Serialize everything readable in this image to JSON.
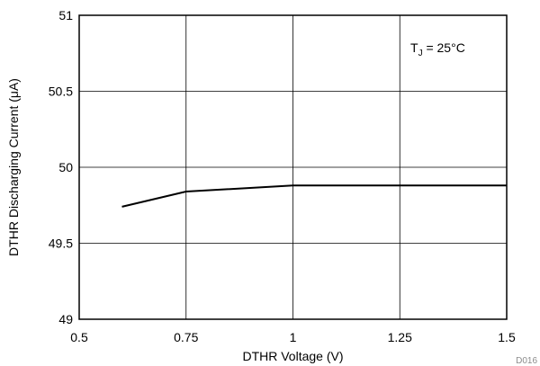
{
  "chart_data": {
    "type": "line",
    "xlabel": "DTHR Voltage (V)",
    "ylabel": "DTHR Discharging Current (μA)",
    "xlim": [
      0.5,
      1.5
    ],
    "ylim": [
      49,
      51
    ],
    "x_ticks": [
      0.5,
      0.75,
      1,
      1.25,
      1.5
    ],
    "x_tick_labels": [
      "0.5",
      "0.75",
      "1",
      "1.25",
      "1.5"
    ],
    "y_ticks": [
      49,
      49.5,
      50,
      50.5,
      51
    ],
    "y_tick_labels": [
      "49",
      "49.5",
      "50",
      "50.5",
      "51"
    ],
    "grid": true,
    "series": [
      {
        "color": "#000000",
        "x": [
          0.6,
          0.75,
          1.0,
          1.25,
          1.5
        ],
        "y": [
          49.74,
          49.84,
          49.88,
          49.88,
          49.88
        ]
      }
    ],
    "annotations": [
      {
        "base": "T",
        "sub": "J",
        "rest": " = 25°C"
      }
    ],
    "figure_id": "D016"
  }
}
